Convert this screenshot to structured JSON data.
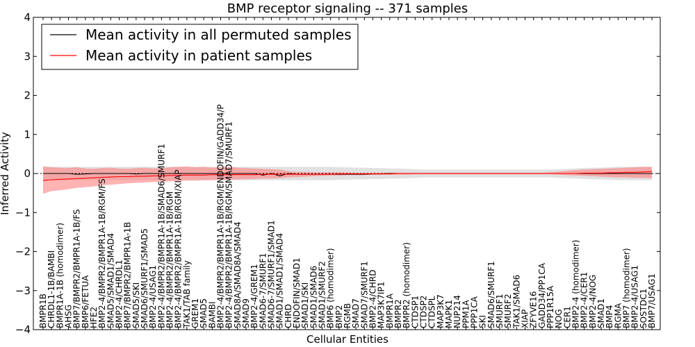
{
  "chart_data": {
    "type": "line",
    "title": "BMP receptor signaling -- 371 samples",
    "xlabel": "Cellular Entities",
    "ylabel": "Inferred Activity",
    "ylim": [
      -4,
      4
    ],
    "yticks": [
      -4,
      -3,
      -2,
      -1,
      0,
      1,
      2,
      3,
      4
    ],
    "legend_position": "top-left",
    "categories": [
      "BMPR1B",
      "CHRDL1-1B/BAMBI",
      "BMPR1A-1B (homodimer)",
      "AHSG",
      "BMP7/BMPR2/BMPR1A-1B/FS",
      "BMP6/FETUA",
      "HFE2",
      "BMP2-4/BMPR2/BMPR1A-1B/RGM/FS",
      "SMAD5/SMAD1/SMAD4",
      "BMP2-4/CHRDL1",
      "BMP7/BMPR2/BMPR1A-1B",
      "SMAD5/SKI",
      "SMAD6/SMURF1/SMAD5",
      "BMP2-4/USAG1",
      "BMP2-4/BMPR2/BMPR1A-1B/SMAD6/SMURF1",
      "BMP2-4/BMPR2/BMPR1A-1B/RGM",
      "BMP2-4/BMPR2/BMPR1A-1B/RGM/XIAP",
      "TAK1/TAB family",
      "GREM1",
      "SMAD5",
      "BAMBI",
      "BMP2-4/BMPR2/BMPR1A-1B/RGM/ENDOFIN/GADD34/P",
      "BMP2-4/BMPR2/BMPR1A-1B/RGM/SMAD7/SMURF1",
      "SMAD8A/SMAD8A/SMAD4",
      "SMAD9",
      "BMP2-4/GREM1",
      "SMAD6-7/SMURF1",
      "SMAD6-7/SMURF1/SMAD1",
      "SMAD1/SMAD1/SMAD4",
      "CHRD",
      "ENDOFIN/SMAD1",
      "SMAD1/SKI",
      "SMAD1/SMAD6",
      "SMAD1/SMURF2",
      "BMP6 (homodimer)",
      "BMP2",
      "RGMB",
      "SMAD7",
      "SMAD7/SMURF1",
      "BMP2-4/CHRD",
      "MAP3K7IP1",
      "BMPR1A",
      "BMPR2",
      "BMPR2 (homodimer)",
      "CTDSP1",
      "CTDSP2",
      "CTDSPL",
      "MAP3K7",
      "MAPK1",
      "NUP214",
      "PPM1A",
      "PPP1CA",
      "SKI",
      "SMAD6/SMURF1",
      "SMURF1",
      "SMURF2",
      "TAK1/SMAD6",
      "XIAP",
      "ZFYVE16",
      "GADD34/PP1CA",
      "PPP1R15A",
      "NOG",
      "CER1",
      "BMP2-4 (homodimer)",
      "BMP2-4/CER1",
      "BMP2-4/NOG",
      "SMAD1",
      "BMP4",
      "RGMA",
      "BMP7 (homodimer)",
      "BMP2-4/USAG1",
      "SOSTDC1",
      "BMP7/USAG1"
    ],
    "series": [
      {
        "name": "Mean activity in all permuted samples",
        "color": "#000000",
        "band_color": "#c8c8c8",
        "values": [
          0.0,
          0.0,
          0.0,
          0.0,
          -0.02,
          -0.01,
          0.0,
          0.0,
          0.0,
          0.0,
          0.0,
          -0.01,
          0.0,
          0.0,
          0.0,
          0.0,
          0.0,
          0.0,
          0.0,
          0.0,
          0.0,
          0.0,
          0.0,
          0.0,
          0.0,
          0.0,
          -0.04,
          0.0,
          -0.06,
          0.0,
          -0.02,
          -0.02,
          -0.02,
          -0.02,
          -0.02,
          -0.02,
          -0.02,
          -0.02,
          -0.02,
          -0.01,
          -0.01,
          0.0,
          0.0,
          0.0,
          0.0,
          0.0,
          0.0,
          0.0,
          0.0,
          0.0,
          0.0,
          0.0,
          0.0,
          0.0,
          0.0,
          0.0,
          0.0,
          0.0,
          0.0,
          0.0,
          0.0,
          0.0,
          0.0,
          0.0,
          0.0,
          0.0,
          0.0,
          0.0,
          0.0,
          0.0,
          0.0,
          0.0,
          0.0
        ],
        "lower": [
          -0.18,
          -0.17,
          -0.17,
          -0.17,
          -0.17,
          -0.17,
          -0.17,
          -0.17,
          -0.17,
          -0.17,
          -0.17,
          -0.17,
          -0.17,
          -0.17,
          -0.17,
          -0.17,
          -0.17,
          -0.17,
          -0.17,
          -0.17,
          -0.17,
          -0.17,
          -0.17,
          -0.17,
          -0.17,
          -0.17,
          -0.17,
          -0.17,
          -0.17,
          -0.17,
          -0.17,
          -0.17,
          -0.17,
          -0.17,
          -0.17,
          -0.16,
          -0.16,
          -0.15,
          -0.15,
          -0.14,
          -0.14,
          -0.13,
          -0.13,
          -0.12,
          -0.11,
          -0.1,
          -0.1,
          -0.1,
          -0.1,
          -0.1,
          -0.1,
          -0.1,
          -0.1,
          -0.1,
          -0.1,
          -0.1,
          -0.1,
          -0.1,
          -0.1,
          -0.1,
          -0.1,
          -0.11,
          -0.12,
          -0.13,
          -0.14,
          -0.15,
          -0.15,
          -0.16,
          -0.17,
          -0.17,
          -0.17,
          -0.17,
          -0.17
        ],
        "upper": [
          0.18,
          0.17,
          0.17,
          0.17,
          0.17,
          0.17,
          0.17,
          0.17,
          0.17,
          0.17,
          0.17,
          0.17,
          0.17,
          0.17,
          0.17,
          0.17,
          0.17,
          0.17,
          0.17,
          0.17,
          0.17,
          0.17,
          0.17,
          0.17,
          0.17,
          0.17,
          0.17,
          0.17,
          0.17,
          0.17,
          0.17,
          0.17,
          0.17,
          0.17,
          0.17,
          0.16,
          0.16,
          0.15,
          0.15,
          0.14,
          0.14,
          0.13,
          0.13,
          0.12,
          0.11,
          0.1,
          0.1,
          0.1,
          0.1,
          0.1,
          0.1,
          0.1,
          0.1,
          0.1,
          0.1,
          0.1,
          0.1,
          0.1,
          0.1,
          0.1,
          0.1,
          0.11,
          0.12,
          0.13,
          0.14,
          0.15,
          0.15,
          0.16,
          0.17,
          0.17,
          0.17,
          0.17,
          0.17
        ]
      },
      {
        "name": "Mean activity in patient samples",
        "color": "#ff0000",
        "band_color": "#ff8080",
        "values": [
          -0.18,
          -0.16,
          -0.15,
          -0.14,
          -0.13,
          -0.12,
          -0.11,
          -0.1,
          -0.09,
          -0.08,
          -0.08,
          -0.07,
          -0.07,
          -0.06,
          -0.06,
          -0.05,
          -0.05,
          -0.04,
          -0.04,
          -0.04,
          -0.03,
          -0.03,
          -0.03,
          -0.03,
          -0.03,
          -0.03,
          -0.02,
          -0.02,
          -0.02,
          -0.02,
          -0.02,
          -0.02,
          -0.02,
          -0.02,
          -0.02,
          -0.01,
          -0.01,
          -0.01,
          -0.01,
          -0.01,
          -0.01,
          -0.01,
          0.0,
          0.0,
          0.0,
          0.0,
          0.0,
          0.0,
          0.0,
          0.0,
          0.0,
          0.0,
          0.0,
          0.0,
          0.0,
          0.0,
          0.0,
          0.0,
          0.0,
          0.0,
          0.0,
          0.0,
          0.0,
          0.0,
          0.01,
          0.01,
          0.01,
          0.02,
          0.02,
          0.03,
          0.03,
          0.04,
          0.05
        ],
        "lower": [
          -0.52,
          -0.45,
          -0.43,
          -0.4,
          -0.37,
          -0.35,
          -0.33,
          -0.3,
          -0.29,
          -0.27,
          -0.25,
          -0.24,
          -0.23,
          -0.22,
          -0.21,
          -0.2,
          -0.19,
          -0.18,
          -0.18,
          -0.17,
          -0.17,
          -0.16,
          -0.16,
          -0.15,
          -0.15,
          -0.14,
          -0.13,
          -0.13,
          -0.12,
          -0.1,
          -0.09,
          -0.08,
          -0.07,
          -0.06,
          -0.05,
          -0.05,
          -0.04,
          -0.04,
          -0.04,
          -0.03,
          -0.03,
          -0.03,
          -0.03,
          -0.03,
          -0.02,
          -0.02,
          -0.02,
          -0.02,
          -0.02,
          -0.02,
          -0.02,
          -0.02,
          -0.02,
          -0.02,
          -0.02,
          -0.02,
          -0.02,
          -0.02,
          -0.02,
          -0.02,
          -0.02,
          -0.03,
          -0.04,
          -0.05,
          -0.06,
          -0.07,
          -0.08,
          -0.09,
          -0.1,
          -0.1,
          -0.11,
          -0.11,
          -0.12
        ],
        "upper": [
          0.18,
          0.16,
          0.15,
          0.14,
          0.16,
          0.13,
          0.12,
          0.14,
          0.15,
          0.13,
          0.12,
          0.14,
          0.15,
          0.13,
          0.14,
          0.16,
          0.17,
          0.18,
          0.16,
          0.17,
          0.15,
          0.16,
          0.17,
          0.15,
          0.14,
          0.13,
          0.12,
          0.11,
          0.1,
          0.06,
          0.04,
          0.04,
          0.03,
          0.03,
          0.03,
          0.03,
          0.03,
          0.02,
          0.02,
          0.02,
          0.02,
          0.02,
          0.02,
          0.02,
          0.02,
          0.02,
          0.02,
          0.02,
          0.02,
          0.02,
          0.02,
          0.02,
          0.02,
          0.02,
          0.02,
          0.02,
          0.02,
          0.02,
          0.02,
          0.02,
          0.03,
          0.05,
          0.07,
          0.09,
          0.1,
          0.11,
          0.12,
          0.13,
          0.14,
          0.15,
          0.16,
          0.17,
          0.17
        ]
      }
    ]
  }
}
